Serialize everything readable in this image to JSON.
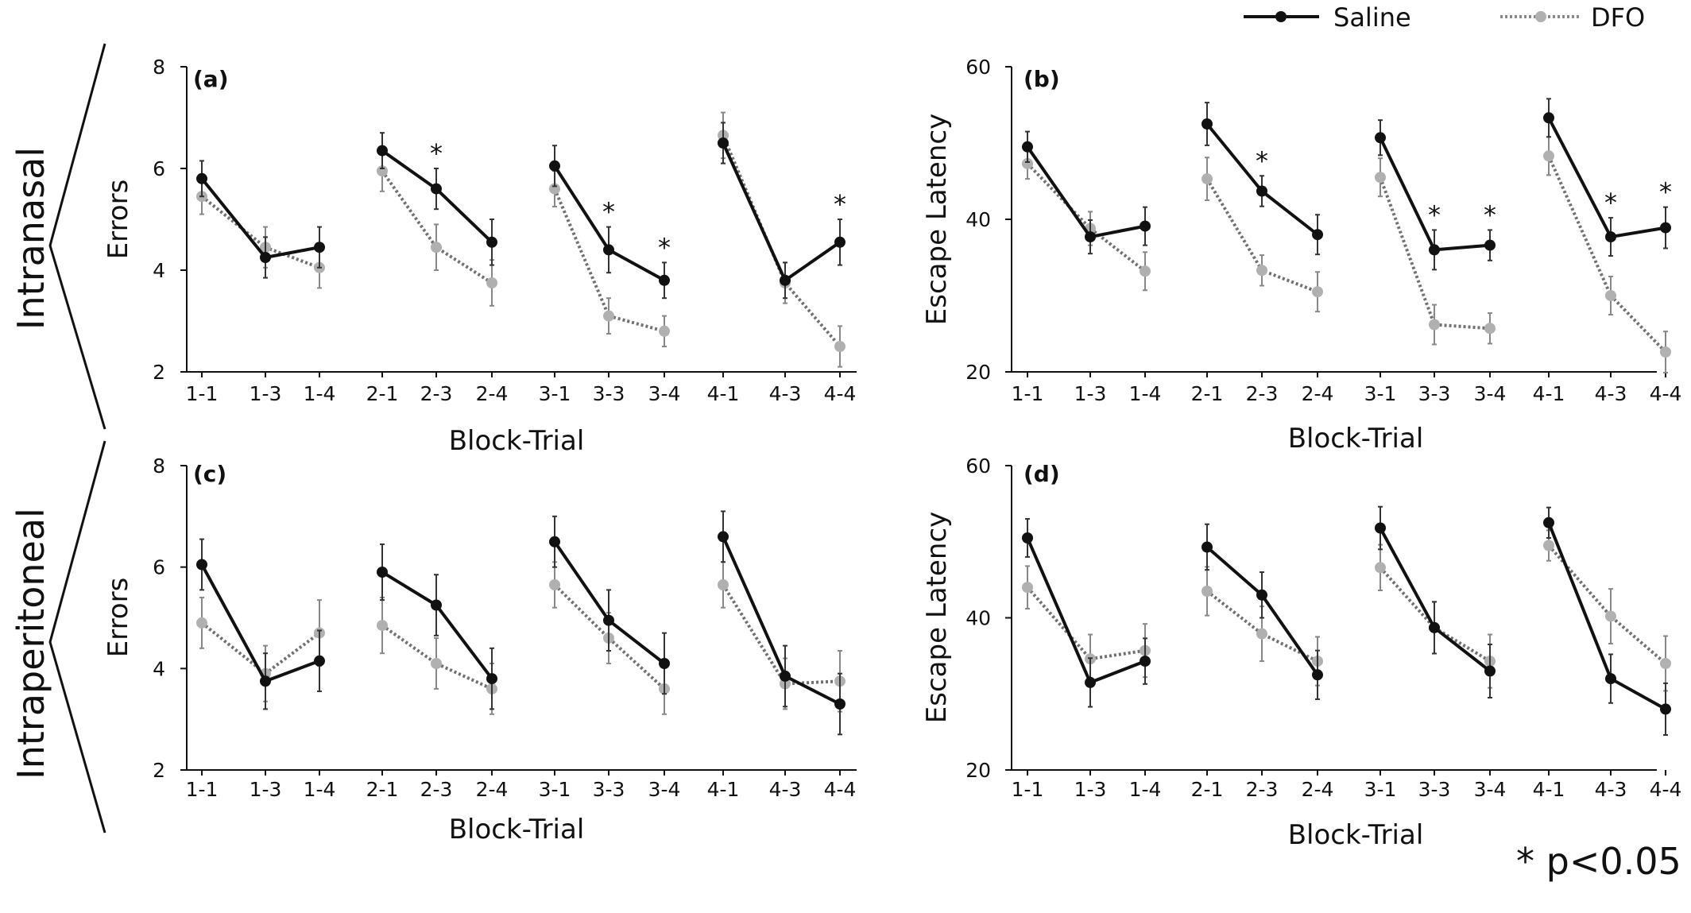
{
  "figure": {
    "group_labels": [
      "Intranasal",
      "Intraperitoneal"
    ],
    "legend": [
      {
        "name": "Saline",
        "color": "#111111",
        "dash": "solid"
      },
      {
        "name": "DFO",
        "color": "#b0b0b0",
        "dash": "dotted"
      }
    ],
    "significance_note": "* p<0.05",
    "significance_symbol": "*"
  },
  "chart_data": [
    {
      "panel": "(a)",
      "type": "line",
      "xlabel": "Block-Trial",
      "ylabel": "Errors",
      "ylim": [
        2,
        8
      ],
      "yticks": [
        "2",
        "4",
        "6",
        "8"
      ],
      "categories": [
        "1-1",
        "1-3",
        "1-4",
        "2-1",
        "2-3",
        "2-4",
        "3-1",
        "3-3",
        "3-4",
        "4-1",
        "4-3",
        "4-4"
      ],
      "series": [
        {
          "name": "Saline",
          "values": [
            5.8,
            4.25,
            4.45,
            6.35,
            5.6,
            4.55,
            6.05,
            4.4,
            3.8,
            6.5,
            3.8,
            4.55
          ],
          "err": [
            0.35,
            0.4,
            0.4,
            0.35,
            0.4,
            0.45,
            0.4,
            0.45,
            0.35,
            0.4,
            0.35,
            0.45
          ]
        },
        {
          "name": "DFO",
          "values": [
            5.45,
            4.45,
            4.05,
            5.95,
            4.45,
            3.75,
            5.6,
            3.1,
            2.8,
            6.65,
            3.75,
            2.5
          ],
          "err": [
            0.35,
            0.4,
            0.4,
            0.4,
            0.45,
            0.45,
            0.35,
            0.35,
            0.3,
            0.45,
            0.4,
            0.4
          ]
        }
      ],
      "significant": [
        "2-3",
        "3-3",
        "3-4",
        "4-4"
      ]
    },
    {
      "panel": "(b)",
      "type": "line",
      "xlabel": "Block-Trial",
      "ylabel": "Escape Latency",
      "ylim": [
        20,
        60
      ],
      "yticks": [
        "20",
        "40",
        "60"
      ],
      "categories": [
        "1-1",
        "1-3",
        "1-4",
        "2-1",
        "2-3",
        "2-4",
        "3-1",
        "3-3",
        "3-4",
        "4-1",
        "4-3",
        "4-4"
      ],
      "series": [
        {
          "name": "Saline",
          "values": [
            49.5,
            37.7,
            39.1,
            52.5,
            43.7,
            38.0,
            50.7,
            36.0,
            36.6,
            53.3,
            37.7,
            38.9
          ],
          "err": [
            2.0,
            2.2,
            2.5,
            2.8,
            2.0,
            2.6,
            2.3,
            2.6,
            2.0,
            2.5,
            2.5,
            2.7
          ]
        },
        {
          "name": "DFO",
          "values": [
            47.3,
            38.8,
            33.2,
            45.3,
            33.3,
            30.5,
            45.5,
            26.2,
            25.7,
            48.3,
            30.0,
            22.6
          ],
          "err": [
            2.0,
            2.2,
            2.5,
            2.8,
            2.0,
            2.6,
            2.5,
            2.6,
            2.0,
            2.5,
            2.5,
            2.7
          ]
        }
      ],
      "significant": [
        "2-3",
        "3-3",
        "3-4",
        "4-3",
        "4-4"
      ]
    },
    {
      "panel": "(c)",
      "type": "line",
      "xlabel": "Block-Trial",
      "ylabel": "Errors",
      "ylim": [
        2,
        8
      ],
      "yticks": [
        "2",
        "4",
        "6",
        "8"
      ],
      "categories": [
        "1-1",
        "1-3",
        "1-4",
        "2-1",
        "2-3",
        "2-4",
        "3-1",
        "3-3",
        "3-4",
        "4-1",
        "4-3",
        "4-4"
      ],
      "series": [
        {
          "name": "Saline",
          "values": [
            6.05,
            3.75,
            4.15,
            5.9,
            5.25,
            3.8,
            6.5,
            4.95,
            4.1,
            6.6,
            3.85,
            3.3
          ],
          "err": [
            0.5,
            0.55,
            0.6,
            0.55,
            0.6,
            0.6,
            0.5,
            0.6,
            0.6,
            0.5,
            0.6,
            0.6
          ]
        },
        {
          "name": "DFO",
          "values": [
            4.9,
            3.9,
            4.7,
            4.85,
            4.1,
            3.6,
            5.65,
            4.6,
            3.6,
            5.65,
            3.7,
            3.75
          ],
          "err": [
            0.5,
            0.55,
            0.65,
            0.55,
            0.5,
            0.5,
            0.45,
            0.5,
            0.5,
            0.45,
            0.5,
            0.6
          ]
        }
      ],
      "significant": []
    },
    {
      "panel": "(d)",
      "type": "line",
      "xlabel": "Block-Trial",
      "ylabel": "Escape Latency",
      "ylim": [
        20,
        60
      ],
      "yticks": [
        "20",
        "40",
        "60"
      ],
      "categories": [
        "1-1",
        "1-3",
        "1-4",
        "2-1",
        "2-3",
        "2-4",
        "3-1",
        "3-3",
        "3-4",
        "4-1",
        "4-3",
        "4-4"
      ],
      "series": [
        {
          "name": "Saline",
          "values": [
            50.5,
            31.5,
            34.3,
            49.3,
            43.0,
            32.5,
            51.8,
            38.7,
            33.0,
            52.5,
            32.0,
            28.0
          ],
          "err": [
            2.5,
            3.2,
            3.0,
            3.0,
            3.0,
            3.2,
            2.8,
            3.4,
            3.5,
            2.0,
            3.2,
            3.4
          ]
        },
        {
          "name": "DFO",
          "values": [
            44.0,
            34.6,
            35.7,
            43.5,
            37.9,
            34.3,
            46.6,
            38.7,
            34.3,
            49.5,
            40.2,
            34.0
          ],
          "err": [
            2.8,
            3.2,
            3.5,
            3.2,
            3.6,
            3.2,
            3.0,
            3.4,
            3.5,
            2.0,
            3.6,
            3.6
          ]
        }
      ],
      "significant": []
    }
  ]
}
